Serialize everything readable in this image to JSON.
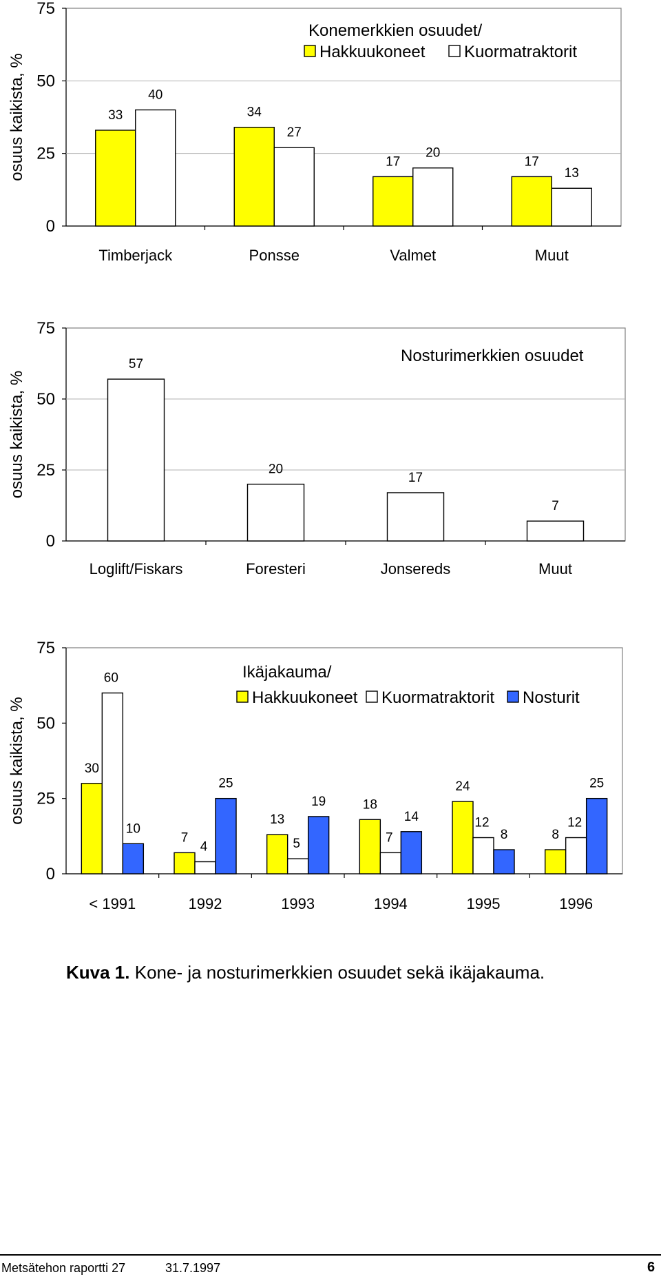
{
  "chart_data": [
    {
      "type": "bar",
      "title": "Konemerkkien osuudet/",
      "ylabel": "osuus kaikista, %",
      "ylim": [
        0,
        75
      ],
      "yticks": [
        0,
        25,
        50,
        75
      ],
      "categories": [
        "Timberjack",
        "Ponsse",
        "Valmet",
        "Muut"
      ],
      "series": [
        {
          "name": "Hakkuukoneet",
          "values": [
            33,
            34,
            17,
            17
          ],
          "color": "#FFFF00"
        },
        {
          "name": "Kuormatraktorit",
          "values": [
            40,
            27,
            20,
            13
          ],
          "color": "#FFFFFF"
        }
      ],
      "legend": "top-right",
      "grid": true
    },
    {
      "type": "bar",
      "title": "Nosturimerkkien osuudet",
      "ylabel": "osuus kaikista, %",
      "ylim": [
        0,
        75
      ],
      "yticks": [
        0,
        25,
        50,
        75
      ],
      "categories": [
        "Loglift/Fiskars",
        "Foresteri",
        "Jonsereds",
        "Muut"
      ],
      "series": [
        {
          "name": "",
          "values": [
            57,
            20,
            17,
            7
          ],
          "color": "#FFFFFF"
        }
      ],
      "grid": true
    },
    {
      "type": "bar",
      "title": "Ikäjakauma/",
      "ylabel": "osuus kaikista, %",
      "ylim": [
        0,
        75
      ],
      "yticks": [
        0,
        25,
        50,
        75
      ],
      "categories": [
        "< 1991",
        "1992",
        "1993",
        "1994",
        "1995",
        "1996"
      ],
      "series": [
        {
          "name": "Hakkuukoneet",
          "values": [
            30,
            7,
            13,
            18,
            24,
            8
          ],
          "color": "#FFFF00"
        },
        {
          "name": "Kuormatraktorit",
          "values": [
            60,
            4,
            5,
            7,
            12,
            12
          ],
          "color": "#FFFFFF"
        },
        {
          "name": "Nosturit",
          "values": [
            10,
            25,
            19,
            14,
            8,
            25
          ],
          "color": "#3366FF"
        }
      ],
      "legend": "top-right",
      "grid": false
    }
  ],
  "caption": {
    "label": "Kuva 1.",
    "text": " Kone- ja nosturimerkkien osuudet sekä ikäjakauma."
  },
  "footer": {
    "report": "Metsätehon raportti 27",
    "date": "31.7.1997",
    "page": "6"
  }
}
